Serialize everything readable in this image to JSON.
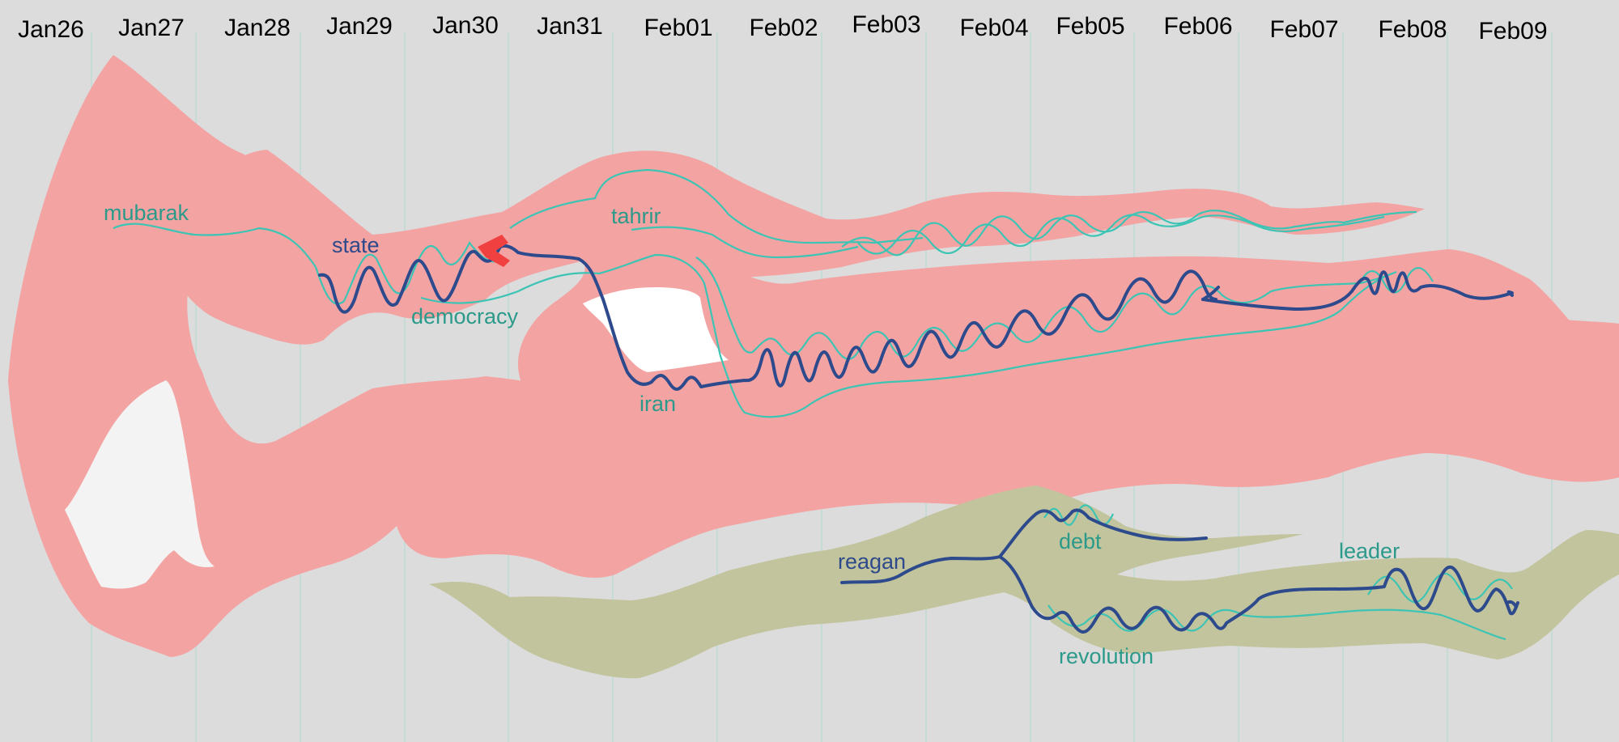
{
  "timeline": {
    "dates": [
      "Jan26",
      "Jan27",
      "Jan28",
      "Jan29",
      "Jan30",
      "Jan31",
      "Feb01",
      "Feb02",
      "Feb03",
      "Feb04",
      "Feb05",
      "Feb06",
      "Feb07",
      "Feb08",
      "Feb09"
    ]
  },
  "keywords": {
    "mubarak": "mubarak",
    "state": "state",
    "democracy": "democracy",
    "tahrir": "tahrir",
    "iran": "iran",
    "reagan": "reagan",
    "debt": "debt",
    "leader": "leader",
    "revolution": "revolution"
  },
  "colors": {
    "background": "#dcdcdc",
    "topic_band_red": "#f4a3a3",
    "topic_band_olive": "#c2c49d",
    "keyword_teal": "#3cc4b4",
    "keyword_navy": "#2d4a8c",
    "split_marker": "#f04040"
  }
}
